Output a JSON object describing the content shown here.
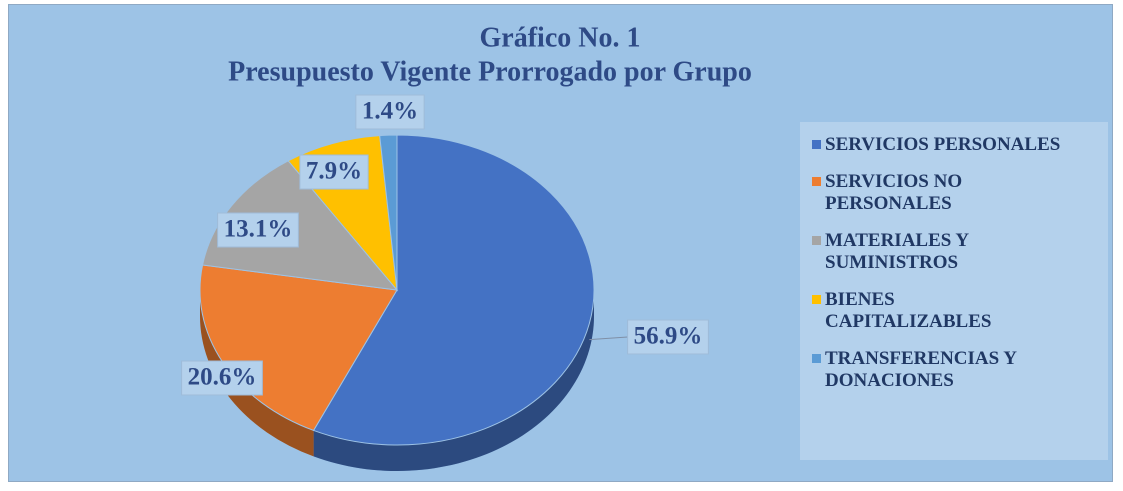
{
  "chart_data": {
    "type": "pie",
    "title": "Gráfico No. 1",
    "subtitle": "Presupuesto  Vigente  Prorrogado por Grupo",
    "categories": [
      "SERVICIOS PERSONALES",
      "SERVICIOS NO PERSONALES",
      "MATERIALES Y SUMINISTROS",
      "BIENES CAPITALIZABLES",
      "TRANSFERENCIAS Y DONACIONES"
    ],
    "values": [
      56.9,
      20.6,
      13.1,
      7.9,
      1.4
    ],
    "value_labels": [
      "56.9%",
      "20.6%",
      "13.1%",
      "7.9%",
      "1.4%"
    ],
    "colors": [
      "#4472c4",
      "#ed7d31",
      "#a5a5a5",
      "#ffc000",
      "#5b9bd5"
    ],
    "legend": "right"
  }
}
